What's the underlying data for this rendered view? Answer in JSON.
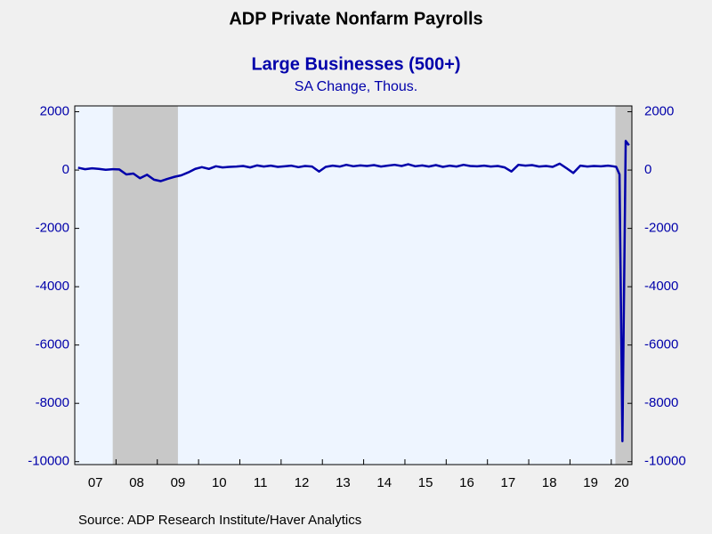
{
  "chart_data": {
    "type": "line",
    "title": "ADP Private Nonfarm Payrolls",
    "subtitle": "Large Businesses (500+)",
    "y_label": "SA Change, Thous.",
    "source": "Source:  ADP Research Institute/Haver Analytics",
    "color": "#0000aa",
    "shading_color": "#c8c8c8",
    "shading": [
      [
        2007.92,
        2009.5
      ],
      [
        2020.1,
        2020.5
      ]
    ],
    "xlim": [
      2007,
      2020.5
    ],
    "xticks": [
      2008,
      2009,
      2010,
      2011,
      2012,
      2013,
      2014,
      2015,
      2016,
      2017,
      2018,
      2019,
      2020
    ],
    "xtick_labels": [
      {
        "value": 2007.5,
        "label": "07"
      },
      {
        "value": 2008.5,
        "label": "08"
      },
      {
        "value": 2009.5,
        "label": "09"
      },
      {
        "value": 2010.5,
        "label": "10"
      },
      {
        "value": 2011.5,
        "label": "11"
      },
      {
        "value": 2012.5,
        "label": "12"
      },
      {
        "value": 2013.5,
        "label": "13"
      },
      {
        "value": 2014.5,
        "label": "14"
      },
      {
        "value": 2015.5,
        "label": "15"
      },
      {
        "value": 2016.5,
        "label": "16"
      },
      {
        "value": 2017.5,
        "label": "17"
      },
      {
        "value": 2018.5,
        "label": "18"
      },
      {
        "value": 2019.5,
        "label": "19"
      },
      {
        "value": 2020.25,
        "label": "20"
      }
    ],
    "ylim": [
      -10100,
      2200
    ],
    "yticks": [
      2000,
      0,
      -2000,
      -4000,
      -6000,
      -8000,
      -10000
    ],
    "y2lim": [
      -10100,
      2200
    ],
    "y2ticks": [
      2000,
      0,
      -2000,
      -4000,
      -6000,
      -8000,
      -10000
    ],
    "x": [
      2007.08,
      2007.25,
      2007.42,
      2007.58,
      2007.75,
      2007.92,
      2008.08,
      2008.25,
      2008.42,
      2008.58,
      2008.75,
      2008.92,
      2009.08,
      2009.25,
      2009.42,
      2009.58,
      2009.75,
      2009.92,
      2010.08,
      2010.25,
      2010.42,
      2010.58,
      2010.75,
      2010.92,
      2011.08,
      2011.25,
      2011.42,
      2011.58,
      2011.75,
      2011.92,
      2012.08,
      2012.25,
      2012.42,
      2012.58,
      2012.75,
      2012.92,
      2013.08,
      2013.25,
      2013.42,
      2013.58,
      2013.75,
      2013.92,
      2014.08,
      2014.25,
      2014.42,
      2014.58,
      2014.75,
      2014.92,
      2015.08,
      2015.25,
      2015.42,
      2015.58,
      2015.75,
      2015.92,
      2016.08,
      2016.25,
      2016.42,
      2016.58,
      2016.75,
      2016.92,
      2017.08,
      2017.25,
      2017.42,
      2017.58,
      2017.75,
      2017.92,
      2018.08,
      2018.25,
      2018.42,
      2018.58,
      2018.75,
      2018.92,
      2019.08,
      2019.25,
      2019.42,
      2019.58,
      2019.75,
      2019.92,
      2020.04,
      2020.12,
      2020.2,
      2020.27,
      2020.35,
      2020.43
    ],
    "values": [
      80,
      30,
      60,
      40,
      10,
      30,
      20,
      -150,
      -120,
      -280,
      -160,
      -330,
      -380,
      -300,
      -230,
      -180,
      -80,
      40,
      100,
      40,
      130,
      90,
      110,
      120,
      140,
      90,
      160,
      120,
      150,
      110,
      130,
      150,
      100,
      140,
      120,
      -50,
      110,
      150,
      120,
      180,
      130,
      160,
      140,
      170,
      120,
      150,
      180,
      140,
      200,
      130,
      160,
      120,
      170,
      110,
      150,
      120,
      180,
      140,
      130,
      150,
      120,
      140,
      90,
      -50,
      180,
      150,
      170,
      120,
      140,
      110,
      220,
      60,
      -100,
      150,
      120,
      140,
      130,
      150,
      130,
      110,
      -150,
      -9300,
      1000,
      850
    ]
  }
}
